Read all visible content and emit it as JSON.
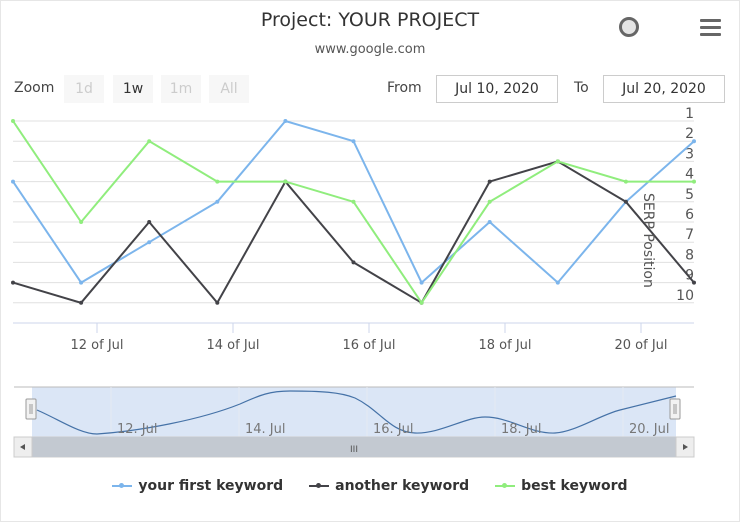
{
  "header": {
    "title": "Project: YOUR PROJECT",
    "subtitle": "www.google.com",
    "status_icon": "circle-icon",
    "menu_icon": "hamburger-menu-icon"
  },
  "range_selector": {
    "zoom_label": "Zoom",
    "buttons": [
      {
        "label": "1d",
        "state": "disabled"
      },
      {
        "label": "1w",
        "state": "active"
      },
      {
        "label": "1m",
        "state": "disabled"
      },
      {
        "label": "All",
        "state": "disabled"
      }
    ],
    "from_label": "From",
    "from_value": "Jul 10, 2020",
    "to_label": "To",
    "to_value": "Jul 20, 2020"
  },
  "navigator": {
    "labels": [
      "12. Jul",
      "14. Jul",
      "16. Jul",
      "18. Jul",
      "20. Jul"
    ],
    "scrollbar_grip": "III"
  },
  "legend": [
    {
      "label": "your first keyword",
      "color": "#7cb5ec"
    },
    {
      "label": "another keyword",
      "color": "#434348"
    },
    {
      "label": "best keyword",
      "color": "#90ed7d"
    }
  ],
  "chart_data": {
    "type": "line",
    "title": "Project: YOUR PROJECT",
    "subtitle": "www.google.com",
    "xlabel": "",
    "ylabel": "SERP Position",
    "y_reversed": true,
    "ylim": [
      1,
      10
    ],
    "y_ticks": [
      "1",
      "2",
      "3",
      "4",
      "5",
      "6",
      "7",
      "8",
      "9",
      "10"
    ],
    "x_tick_labels": [
      "12 of Jul",
      "14 of Jul",
      "16 of Jul",
      "18 of Jul",
      "20 of Jul"
    ],
    "x": [
      "Jul 10.8",
      "Jul 11.8",
      "Jul 12.8",
      "Jul 13.8",
      "Jul 14.8",
      "Jul 15.8",
      "Jul 16.8",
      "Jul 17.8",
      "Jul 18.8",
      "Jul 19.8",
      "Jul 20.8"
    ],
    "series": [
      {
        "name": "your first keyword",
        "color": "#7cb5ec",
        "values": [
          4,
          9,
          7,
          5,
          1,
          2,
          9,
          6,
          9,
          5,
          2
        ]
      },
      {
        "name": "another keyword",
        "color": "#434348",
        "values": [
          9,
          10,
          6,
          10,
          4,
          8,
          10,
          4,
          3,
          5,
          9
        ]
      },
      {
        "name": "best keyword",
        "color": "#90ed7d",
        "values": [
          1,
          6,
          2,
          4,
          4,
          5,
          10,
          5,
          3,
          4,
          4
        ]
      }
    ],
    "grid": true,
    "legend_position": "bottom"
  }
}
